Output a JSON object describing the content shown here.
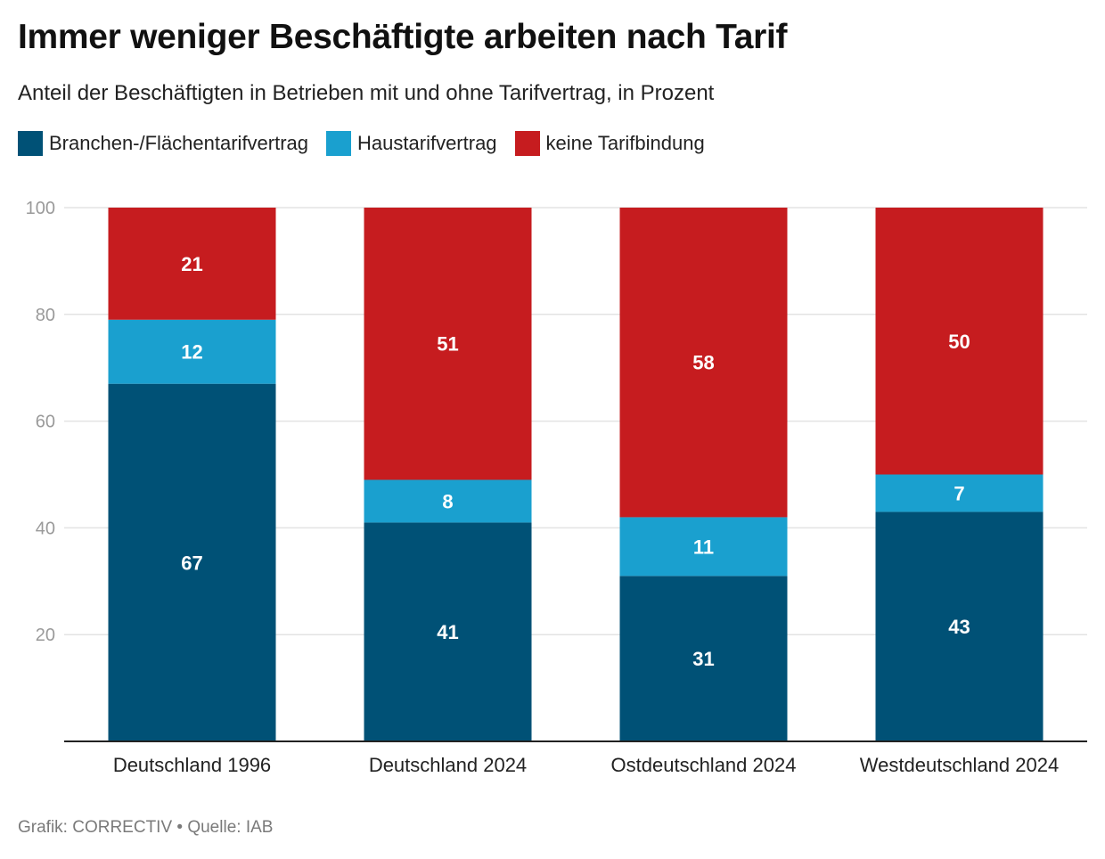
{
  "title": "Immer weniger Beschäftigte arbeiten nach Tarif",
  "subtitle": "Anteil der Beschäftigten in Betrieben mit und ohne Tarifvertrag, in Prozent",
  "footer": "Grafik: CORRECTIV • Quelle: IAB",
  "chart_data": {
    "type": "bar",
    "stacked": true,
    "categories": [
      "Deutschland 1996",
      "Deutschland 2024",
      "Ostdeutschland 2024",
      "Westdeutschland 2024"
    ],
    "series": [
      {
        "name": "Branchen-/Flächentarifvertrag",
        "color": "#005176",
        "values": [
          67,
          41,
          31,
          43
        ]
      },
      {
        "name": "Haustarifvertrag",
        "color": "#1aa0cf",
        "values": [
          12,
          8,
          11,
          7
        ]
      },
      {
        "name": "keine Tarifbindung",
        "color": "#c61c1f",
        "values": [
          21,
          51,
          58,
          50
        ]
      }
    ],
    "yticks": [
      "20",
      "40",
      "60",
      "80",
      "100"
    ],
    "ylim": [
      0,
      100
    ],
    "grid": true,
    "legend": "top-left",
    "xlabel": "",
    "ylabel": ""
  }
}
